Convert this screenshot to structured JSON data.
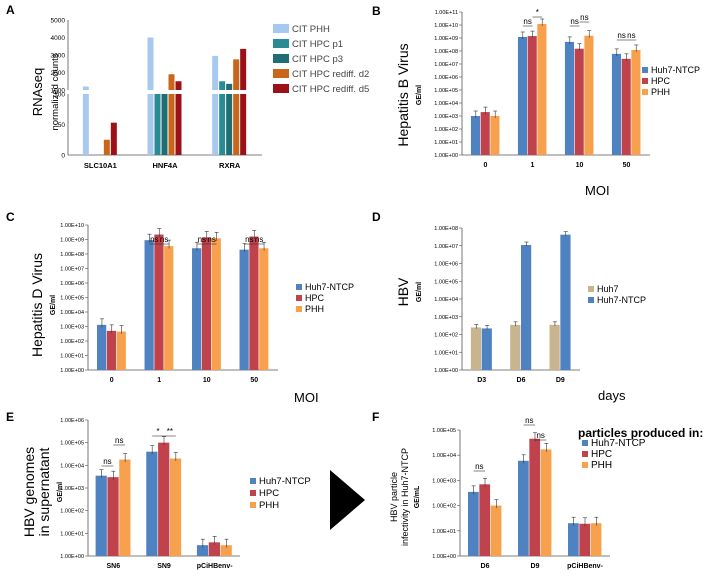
{
  "figure": {
    "panels": [
      "A",
      "B",
      "C",
      "D",
      "E",
      "F"
    ],
    "arrow": "big-black-arrow"
  },
  "colors": {
    "huh7ntcp": "#4f82c0",
    "hpc": "#c0424c",
    "phh": "#f7a14e",
    "huh7": "#c8b48e",
    "cit_phh": "#a7c8ef",
    "cit_p1": "#2b8b95",
    "cit_p3": "#1f6e76",
    "cit_d2": "#c9661a",
    "cit_d5": "#9c1118"
  },
  "chart_data": [
    {
      "panel": "A",
      "type": "bar",
      "ylabel": "RNAseq",
      "ylabel2": "normalized counts",
      "categories": [
        "SLC10A1",
        "HNF4A",
        "RXRA"
      ],
      "ylim_lower": [
        0,
        100
      ],
      "lower_ticks": [
        "0",
        "50",
        "100"
      ],
      "ylim_upper": [
        1000,
        5000
      ],
      "upper_ticks": [
        "1000",
        "2000",
        "3000",
        "4000",
        "5000"
      ],
      "series": [
        {
          "name": "CIT PHH",
          "values": [
            1200,
            4000,
            2950
          ]
        },
        {
          "name": "CIT HPC p1",
          "values": [
            0,
            100,
            1500
          ]
        },
        {
          "name": "CIT HPC p3",
          "values": [
            0,
            100,
            1350
          ]
        },
        {
          "name": "CIT HPC rediff. d2",
          "values": [
            25,
            1900,
            2750
          ]
        },
        {
          "name": "CIT HPC rediff. d5",
          "values": [
            53,
            1500,
            3350
          ]
        }
      ]
    },
    {
      "panel": "B",
      "type": "bar",
      "ylabel": "Hepatitis B Virus",
      "ylabel2": "GE/ml",
      "scale": "log",
      "ylim_exp": [
        0,
        11
      ],
      "ticks": [
        "1.00E+00",
        "1.00E+01",
        "1.00E+02",
        "1.00E+03",
        "1.00E+04",
        "1.00E+05",
        "1.00E+06",
        "1.00E+07",
        "1.00E+08",
        "1.00E+09",
        "1.00E+10",
        "1.00E+11"
      ],
      "categories": [
        "0",
        "1",
        "10",
        "50"
      ],
      "xlabel": "MOI",
      "series": [
        {
          "name": "Huh7-NTCP",
          "values": [
            1000,
            1200000000,
            500000000,
            60000000
          ]
        },
        {
          "name": "HPC",
          "values": [
            2000,
            1400000000,
            150000000,
            25000000
          ]
        },
        {
          "name": "PHH",
          "values": [
            1000,
            12000000000,
            1500000000,
            120000000
          ]
        }
      ],
      "annotations": [
        "ns",
        "*",
        "ns",
        "ns",
        "ns",
        "ns"
      ]
    },
    {
      "panel": "C",
      "type": "bar",
      "ylabel": "Hepatitis D Virus",
      "ylabel2": "GE/ml",
      "scale": "log",
      "ylim_exp": [
        0,
        10
      ],
      "ticks": [
        "1.00E+00",
        "1.00E+01",
        "1.00E+02",
        "1.00E+03",
        "1.00E+04",
        "1.00E+05",
        "1.00E+06",
        "1.00E+07",
        "1.00E+08",
        "1.00E+09",
        "1.00E+10"
      ],
      "categories": [
        "0",
        "1",
        "10",
        "50"
      ],
      "xlabel": "MOI",
      "series": [
        {
          "name": "Huh7-NTCP",
          "values": [
            1300,
            900000000,
            250000000,
            200000000
          ]
        },
        {
          "name": "HPC",
          "values": [
            500,
            2200000000,
            1400000000,
            1600000000
          ]
        },
        {
          "name": "PHH",
          "values": [
            450,
            350000000,
            1200000000,
            250000000
          ]
        }
      ],
      "annotations": [
        "ns",
        "ns",
        "ns",
        "ns",
        "ns",
        "ns"
      ]
    },
    {
      "panel": "D",
      "type": "bar",
      "ylabel": "HBV",
      "ylabel2": "GE/ml",
      "scale": "log",
      "ylim_exp": [
        0,
        8
      ],
      "ticks": [
        "1.00E+00",
        "1.00E+01",
        "1.00E+02",
        "1.00E+03",
        "1.00E+04",
        "1.00E+05",
        "1.00E+06",
        "1.00E+07",
        "1.00E+08"
      ],
      "categories": [
        "D3",
        "D6",
        "D9"
      ],
      "xlabel": "days",
      "series": [
        {
          "name": "Huh7",
          "values": [
            250,
            350,
            350
          ]
        },
        {
          "name": "Huh7-NTCP",
          "values": [
            220,
            11000000,
            42000000
          ]
        }
      ]
    },
    {
      "panel": "E",
      "type": "bar",
      "ylabel": "HBV genomes",
      "ylabel2": "in supernatant",
      "ylabel3": "GE/ml",
      "scale": "log",
      "ylim_exp": [
        0,
        6
      ],
      "ticks": [
        "1.00E+00",
        "1.00E+01",
        "1.00E+02",
        "1.00E+03",
        "1.00E+04",
        "1.00E+05",
        "1.00E+06"
      ],
      "categories": [
        "SN6",
        "SN9",
        "pCiHBenv-"
      ],
      "series": [
        {
          "name": "Huh7-NTCP",
          "values": [
            3500,
            40000,
            3
          ]
        },
        {
          "name": "HPC",
          "values": [
            3000,
            100000,
            4
          ]
        },
        {
          "name": "PHH",
          "values": [
            18000,
            20000,
            3
          ]
        }
      ],
      "annotations": [
        "ns",
        "ns",
        "*",
        "**"
      ]
    },
    {
      "panel": "F",
      "type": "bar",
      "ylabel": "HBV particle",
      "ylabel2": "infectivity in Huh7-NTCP",
      "ylabel3": "GE/mL",
      "legend_title": "particles produced in:",
      "scale": "log",
      "ylim_exp": [
        0,
        5
      ],
      "ticks": [
        "1.00E+00",
        "1.00E+01",
        "1.00E+02",
        "1.00E+03",
        "1.00E+04",
        "1.00E+05"
      ],
      "categories": [
        "D6",
        "D9",
        "pCiHBenv-"
      ],
      "series": [
        {
          "name": "Huh7-NTCP",
          "values": [
            350,
            6000,
            20
          ]
        },
        {
          "name": "HPC",
          "values": [
            700,
            45000,
            19
          ]
        },
        {
          "name": "PHH",
          "values": [
            100,
            17000,
            20
          ]
        }
      ],
      "annotations": [
        "ns",
        "ns",
        "ns"
      ]
    }
  ]
}
